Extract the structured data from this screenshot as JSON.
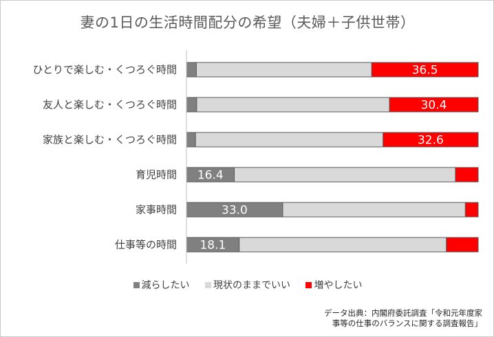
{
  "chart_data": {
    "type": "bar",
    "orientation": "horizontal",
    "stacked": true,
    "title": "妻の1日の生活時間配分の希望（夫婦＋子供世帯）",
    "categories": [
      "ひとりで楽しむ・くつろぐ時間",
      "友人と楽しむ・くつろぐ時間",
      "家族と楽しむ・くつろぐ時間",
      "育児時間",
      "家事時間",
      "仕事等の時間"
    ],
    "series": [
      {
        "name": "減らしたい",
        "values": [
          3.4,
          3.5,
          3.1,
          16.4,
          33.0,
          18.1
        ],
        "color": "#808080"
      },
      {
        "name": "現状のままでいい",
        "values": [
          60.1,
          66.1,
          64.3,
          75.8,
          62.6,
          71.0
        ],
        "color": "#d9d9d9"
      },
      {
        "name": "増やしたい",
        "values": [
          36.5,
          30.4,
          32.6,
          7.8,
          4.4,
          10.9
        ],
        "color": "#ff0000"
      }
    ],
    "labels": [
      [
        null,
        null,
        "36.5"
      ],
      [
        null,
        null,
        "30.4"
      ],
      [
        null,
        null,
        "32.6"
      ],
      [
        "16.4",
        null,
        null
      ],
      [
        "33.0",
        null,
        null
      ],
      [
        "18.1",
        null,
        null
      ]
    ],
    "xlim": [
      0,
      100
    ],
    "xlabel": "",
    "ylabel": "",
    "grid": false,
    "legend": "bottom"
  },
  "source": {
    "line1": "データ出典：内閣府委託調査「令和元年度家",
    "line2": "事等の仕事のバランスに関する調査報告」"
  }
}
